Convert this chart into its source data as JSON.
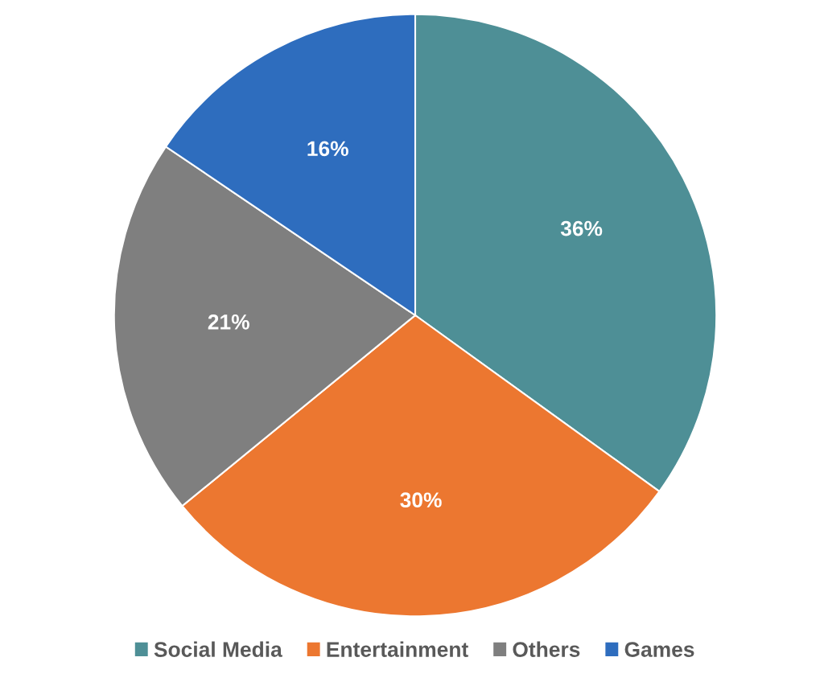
{
  "chart_data": {
    "type": "pie",
    "categories": [
      "Social Media",
      "Entertainment",
      "Others",
      "Games"
    ],
    "values": [
      36,
      30,
      21,
      16
    ],
    "value_labels": [
      "36%",
      "30%",
      "21%",
      "16%"
    ],
    "colors": [
      "#4e8f96",
      "#ec7730",
      "#7f7f7f",
      "#2e6dbe"
    ],
    "legend": "bottom"
  }
}
